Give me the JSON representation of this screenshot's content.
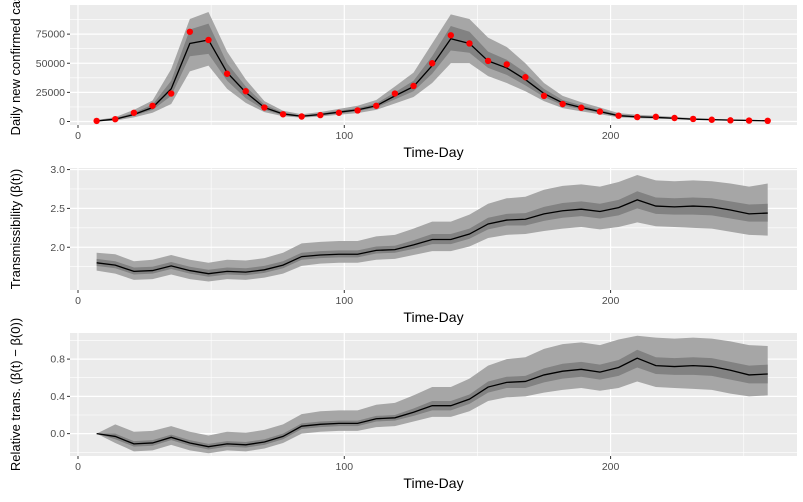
{
  "chart_data": [
    {
      "type": "line",
      "xlabel": "Time-Day",
      "ylabel": "Daily new confirmed cas",
      "xlim": [
        -3,
        270
      ],
      "ylim": [
        -3000,
        100000
      ],
      "xticks": [
        0,
        100,
        200
      ],
      "yticks": [
        0,
        25000,
        50000,
        75000
      ],
      "ytick_labels": [
        "0",
        "25000",
        "50000",
        "75000"
      ],
      "grid": true,
      "x": [
        7,
        14,
        21,
        28,
        35,
        42,
        49,
        56,
        63,
        70,
        77,
        84,
        91,
        98,
        105,
        112,
        119,
        126,
        133,
        140,
        147,
        154,
        161,
        168,
        175,
        182,
        189,
        196,
        203,
        210,
        217,
        224,
        231,
        238,
        245,
        252,
        259
      ],
      "median": [
        500,
        2000,
        6000,
        12000,
        28000,
        67000,
        70000,
        42000,
        25000,
        12000,
        6500,
        4500,
        6000,
        8000,
        10000,
        13500,
        22000,
        30000,
        48000,
        71000,
        67000,
        52000,
        46000,
        36000,
        24000,
        16000,
        12000,
        8500,
        5000,
        4000,
        3500,
        2800,
        2000,
        1600,
        1200,
        900,
        600
      ],
      "inner_low": [
        300,
        1500,
        5000,
        10000,
        22000,
        56000,
        58000,
        35000,
        20000,
        10000,
        5500,
        4000,
        5200,
        7000,
        8800,
        12000,
        19000,
        26000,
        41000,
        61000,
        59000,
        46000,
        40000,
        31000,
        21000,
        14000,
        10500,
        7500,
        4300,
        3400,
        3000,
        2400,
        1700,
        1300,
        1000,
        750,
        500
      ],
      "inner_high": [
        800,
        2800,
        7500,
        14500,
        35000,
        79000,
        84000,
        50000,
        30000,
        14500,
        7700,
        5200,
        7000,
        9200,
        11500,
        15500,
        25000,
        35000,
        56000,
        82000,
        77000,
        60000,
        53000,
        42000,
        28000,
        18500,
        14000,
        10000,
        6000,
        4800,
        4200,
        3300,
        2400,
        1900,
        1500,
        1100,
        750
      ],
      "outer_low": [
        100,
        800,
        3500,
        7500,
        15000,
        43000,
        48000,
        28000,
        16000,
        8000,
        4500,
        3300,
        4300,
        5800,
        7200,
        10000,
        15500,
        21000,
        33000,
        50000,
        50000,
        39000,
        33000,
        26000,
        17500,
        11500,
        8700,
        6200,
        3500,
        2800,
        2500,
        2000,
        1400,
        1100,
        800,
        600,
        400
      ],
      "outer_high": [
        1200,
        3800,
        10000,
        18000,
        45000,
        88000,
        94000,
        60000,
        36000,
        17500,
        9200,
        6200,
        8200,
        10800,
        13500,
        18500,
        30000,
        42000,
        67000,
        92000,
        88000,
        72000,
        64000,
        50000,
        33000,
        22000,
        16500,
        12000,
        7200,
        5800,
        5000,
        4000,
        2900,
        2300,
        1800,
        1300,
        900
      ],
      "observed": [
        500,
        2000,
        7500,
        13500,
        24000,
        77000,
        70000,
        41000,
        26000,
        12000,
        6200,
        4300,
        5500,
        7500,
        9500,
        13500,
        24000,
        30500,
        50000,
        74000,
        67000,
        52000,
        49000,
        38000,
        22000,
        15000,
        11800,
        8500,
        5000,
        3800,
        4000,
        3000,
        2200,
        1500,
        1000,
        800,
        600
      ]
    },
    {
      "type": "line",
      "xlabel": "Time-Day",
      "ylabel": "Transmissibility (β(t))",
      "xlim": [
        -3,
        270
      ],
      "ylim": [
        1.45,
        3.02
      ],
      "xticks": [
        0,
        100,
        200
      ],
      "yticks": [
        2.0,
        2.5,
        3.0
      ],
      "ytick_labels": [
        "2.0",
        "2.5",
        "3.0"
      ],
      "grid": true,
      "x": [
        7,
        14,
        21,
        28,
        35,
        42,
        49,
        56,
        63,
        70,
        77,
        84,
        91,
        98,
        105,
        112,
        119,
        126,
        133,
        140,
        147,
        154,
        161,
        168,
        175,
        182,
        189,
        196,
        203,
        210,
        217,
        224,
        231,
        238,
        245,
        252,
        259
      ],
      "median": [
        1.8,
        1.77,
        1.69,
        1.7,
        1.76,
        1.7,
        1.66,
        1.69,
        1.68,
        1.71,
        1.77,
        1.88,
        1.9,
        1.91,
        1.91,
        1.96,
        1.97,
        2.03,
        2.1,
        2.1,
        2.17,
        2.3,
        2.35,
        2.36,
        2.43,
        2.47,
        2.49,
        2.46,
        2.51,
        2.61,
        2.53,
        2.52,
        2.53,
        2.52,
        2.48,
        2.43,
        2.44
      ],
      "inner_low": [
        1.76,
        1.73,
        1.65,
        1.66,
        1.72,
        1.66,
        1.62,
        1.65,
        1.64,
        1.67,
        1.73,
        1.84,
        1.86,
        1.87,
        1.87,
        1.92,
        1.93,
        1.98,
        2.04,
        2.04,
        2.11,
        2.23,
        2.28,
        2.28,
        2.34,
        2.38,
        2.4,
        2.37,
        2.41,
        2.5,
        2.43,
        2.42,
        2.42,
        2.41,
        2.37,
        2.33,
        2.33
      ],
      "inner_high": [
        1.85,
        1.82,
        1.74,
        1.75,
        1.81,
        1.75,
        1.71,
        1.74,
        1.73,
        1.76,
        1.82,
        1.93,
        1.95,
        1.96,
        1.96,
        2.01,
        2.02,
        2.09,
        2.17,
        2.17,
        2.24,
        2.38,
        2.43,
        2.44,
        2.52,
        2.57,
        2.59,
        2.56,
        2.61,
        2.72,
        2.64,
        2.63,
        2.64,
        2.63,
        2.59,
        2.55,
        2.56
      ],
      "outer_low": [
        1.7,
        1.66,
        1.58,
        1.59,
        1.65,
        1.59,
        1.56,
        1.59,
        1.58,
        1.61,
        1.66,
        1.76,
        1.79,
        1.8,
        1.8,
        1.84,
        1.85,
        1.9,
        1.95,
        1.95,
        2.01,
        2.12,
        2.16,
        2.17,
        2.21,
        2.24,
        2.26,
        2.23,
        2.26,
        2.32,
        2.27,
        2.26,
        2.25,
        2.24,
        2.2,
        2.16,
        2.15
      ],
      "outer_high": [
        1.93,
        1.91,
        1.82,
        1.84,
        1.9,
        1.84,
        1.8,
        1.84,
        1.83,
        1.86,
        1.93,
        2.05,
        2.07,
        2.08,
        2.08,
        2.14,
        2.16,
        2.24,
        2.33,
        2.33,
        2.42,
        2.56,
        2.63,
        2.65,
        2.74,
        2.79,
        2.81,
        2.78,
        2.84,
        2.93,
        2.86,
        2.85,
        2.86,
        2.85,
        2.82,
        2.78,
        2.82
      ]
    },
    {
      "type": "line",
      "xlabel": "Time-Day",
      "ylabel": "Relative trans. (β(t) − β(0))",
      "xlim": [
        -3,
        270
      ],
      "ylim": [
        -0.24,
        1.08
      ],
      "xticks": [
        0,
        100,
        200
      ],
      "yticks": [
        0.0,
        0.4,
        0.8
      ],
      "ytick_labels": [
        "0.0",
        "0.4",
        "0.8"
      ],
      "grid": true,
      "x": [
        7,
        14,
        21,
        28,
        35,
        42,
        49,
        56,
        63,
        70,
        77,
        84,
        91,
        98,
        105,
        112,
        119,
        126,
        133,
        140,
        147,
        154,
        161,
        168,
        175,
        182,
        189,
        196,
        203,
        210,
        217,
        224,
        231,
        238,
        245,
        252,
        259
      ],
      "median": [
        0.0,
        -0.03,
        -0.11,
        -0.1,
        -0.04,
        -0.1,
        -0.14,
        -0.11,
        -0.12,
        -0.09,
        -0.03,
        0.08,
        0.1,
        0.11,
        0.11,
        0.16,
        0.17,
        0.23,
        0.3,
        0.3,
        0.37,
        0.5,
        0.55,
        0.56,
        0.63,
        0.67,
        0.69,
        0.66,
        0.71,
        0.81,
        0.73,
        0.72,
        0.73,
        0.72,
        0.68,
        0.63,
        0.64
      ],
      "inner_low": [
        0.0,
        -0.06,
        -0.14,
        -0.13,
        -0.07,
        -0.13,
        -0.17,
        -0.14,
        -0.15,
        -0.12,
        -0.06,
        0.05,
        0.07,
        0.08,
        0.08,
        0.13,
        0.14,
        0.19,
        0.25,
        0.25,
        0.32,
        0.44,
        0.49,
        0.49,
        0.55,
        0.59,
        0.61,
        0.58,
        0.62,
        0.71,
        0.64,
        0.63,
        0.63,
        0.62,
        0.58,
        0.54,
        0.54
      ],
      "inner_high": [
        0.0,
        0.0,
        -0.08,
        -0.07,
        -0.01,
        -0.07,
        -0.11,
        -0.08,
        -0.09,
        -0.06,
        0.0,
        0.11,
        0.13,
        0.14,
        0.14,
        0.19,
        0.2,
        0.27,
        0.35,
        0.35,
        0.42,
        0.56,
        0.61,
        0.62,
        0.7,
        0.75,
        0.77,
        0.74,
        0.79,
        0.9,
        0.82,
        0.81,
        0.82,
        0.81,
        0.77,
        0.73,
        0.74
      ],
      "outer_low": [
        0.0,
        -0.1,
        -0.19,
        -0.18,
        -0.12,
        -0.18,
        -0.21,
        -0.18,
        -0.19,
        -0.16,
        -0.1,
        0.0,
        0.02,
        0.03,
        0.03,
        0.07,
        0.08,
        0.13,
        0.18,
        0.18,
        0.24,
        0.35,
        0.39,
        0.4,
        0.44,
        0.47,
        0.49,
        0.46,
        0.49,
        0.56,
        0.5,
        0.49,
        0.48,
        0.47,
        0.43,
        0.4,
        0.41
      ],
      "outer_high": [
        0.0,
        0.1,
        0.02,
        0.03,
        0.08,
        0.02,
        -0.02,
        0.02,
        0.01,
        0.04,
        0.1,
        0.21,
        0.24,
        0.25,
        0.25,
        0.31,
        0.33,
        0.41,
        0.5,
        0.5,
        0.59,
        0.73,
        0.8,
        0.82,
        0.91,
        0.96,
        0.98,
        0.95,
        1.01,
        1.05,
        1.03,
        1.02,
        1.03,
        1.02,
        0.99,
        0.95,
        0.94
      ]
    }
  ],
  "colors": {
    "panel_bg": "#ebebeb",
    "grid": "#ffffff",
    "outer_band": "#a6a6a6",
    "inner_band": "#828282",
    "median_line": "#000000",
    "observed_point": "#ff0000"
  }
}
